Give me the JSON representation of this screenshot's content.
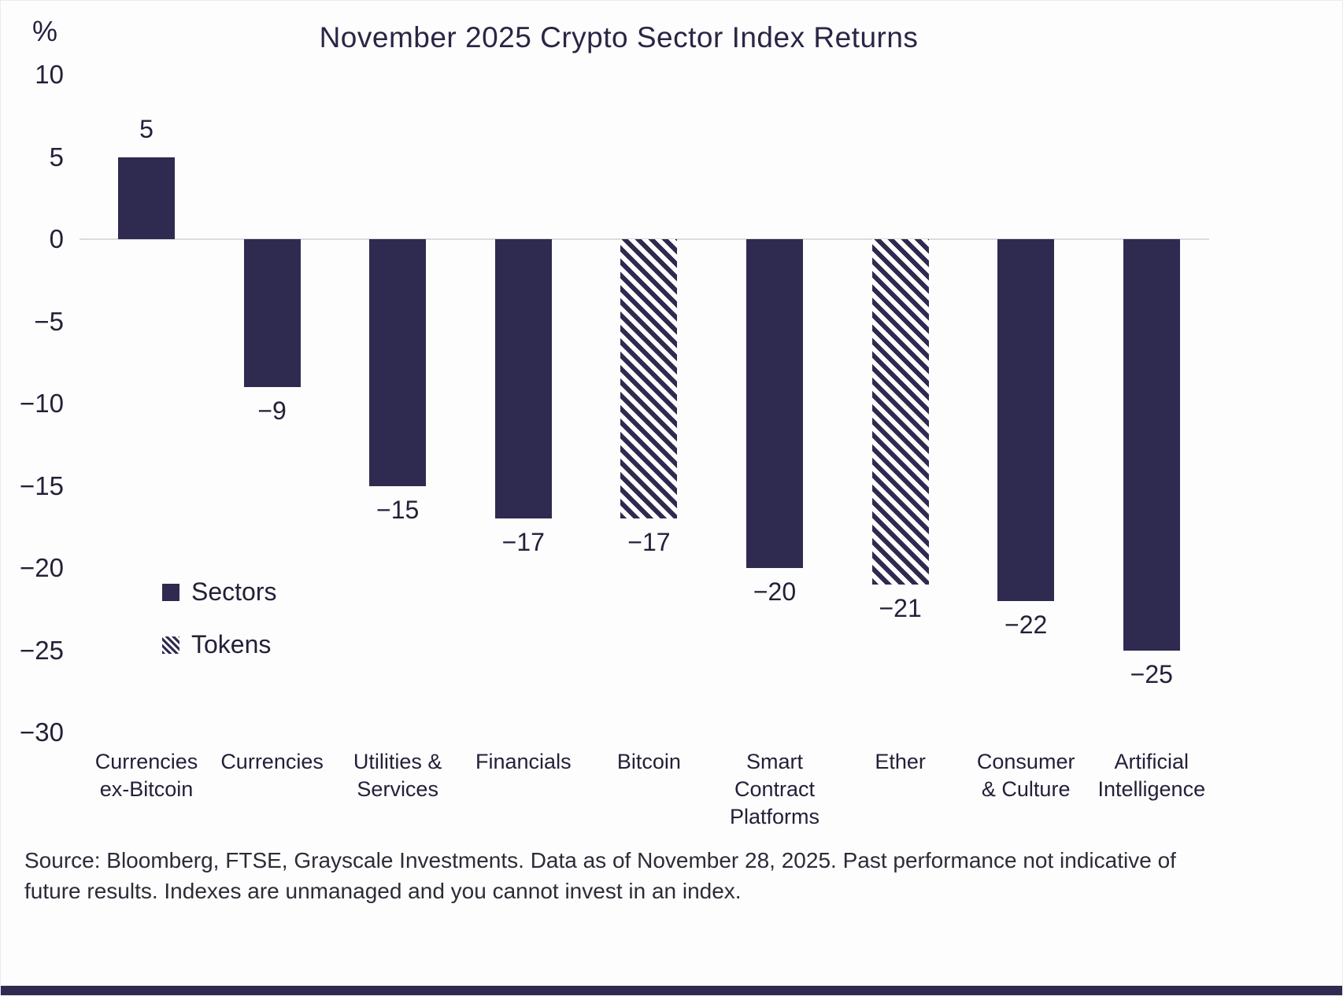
{
  "chart_data": {
    "type": "bar",
    "title": "November 2025 Crypto Sector Index Returns",
    "y_unit": "%",
    "ylim": [
      -30,
      10
    ],
    "grid": "zero-line-only",
    "legend_position": "middle-left",
    "bar_color": "#2f2a4f",
    "gridline_color": "#dcdcdc",
    "background_color": "#fdfdfd",
    "yticks": [
      {
        "value": 10,
        "label": "10"
      },
      {
        "value": 5,
        "label": "5"
      },
      {
        "value": 0,
        "label": "0"
      },
      {
        "value": -5,
        "label": "−5"
      },
      {
        "value": -10,
        "label": "−10"
      },
      {
        "value": -15,
        "label": "−15"
      },
      {
        "value": -20,
        "label": "−20"
      },
      {
        "value": -25,
        "label": "−25"
      },
      {
        "value": -30,
        "label": "−30"
      }
    ],
    "categories": [
      "Currencies ex-Bitcoin",
      "Currencies",
      "Utilities & Services",
      "Financials",
      "Bitcoin",
      "Smart Contract Platforms",
      "Ether",
      "Consumer & Culture",
      "Artificial Intelligence"
    ],
    "category_lines": [
      [
        "Currencies",
        "ex-Bitcoin"
      ],
      [
        "Currencies"
      ],
      [
        "Utilities &",
        "Services"
      ],
      [
        "Financials"
      ],
      [
        "Bitcoin"
      ],
      [
        "Smart",
        "Contract",
        "Platforms"
      ],
      [
        "Ether"
      ],
      [
        "Consumer",
        "& Culture"
      ],
      [
        "Artificial",
        "Intelligence"
      ]
    ],
    "values": [
      5,
      -9,
      -15,
      -17,
      -17,
      -20,
      -21,
      -22,
      -25
    ],
    "value_labels": [
      "5",
      "−9",
      "−15",
      "−17",
      "−17",
      "−20",
      "−21",
      "−22",
      "−25"
    ],
    "styles": [
      "solid",
      "solid",
      "solid",
      "solid",
      "hatched",
      "solid",
      "hatched",
      "solid",
      "solid"
    ],
    "legend": [
      {
        "label": "Sectors",
        "style": "solid"
      },
      {
        "label": "Tokens",
        "style": "hatched"
      }
    ],
    "source": "Source: Bloomberg, FTSE, Grayscale Investments. Data as of November 28, 2025. Past performance not indicative of future results. Indexes are unmanaged and you cannot invest in an index."
  }
}
